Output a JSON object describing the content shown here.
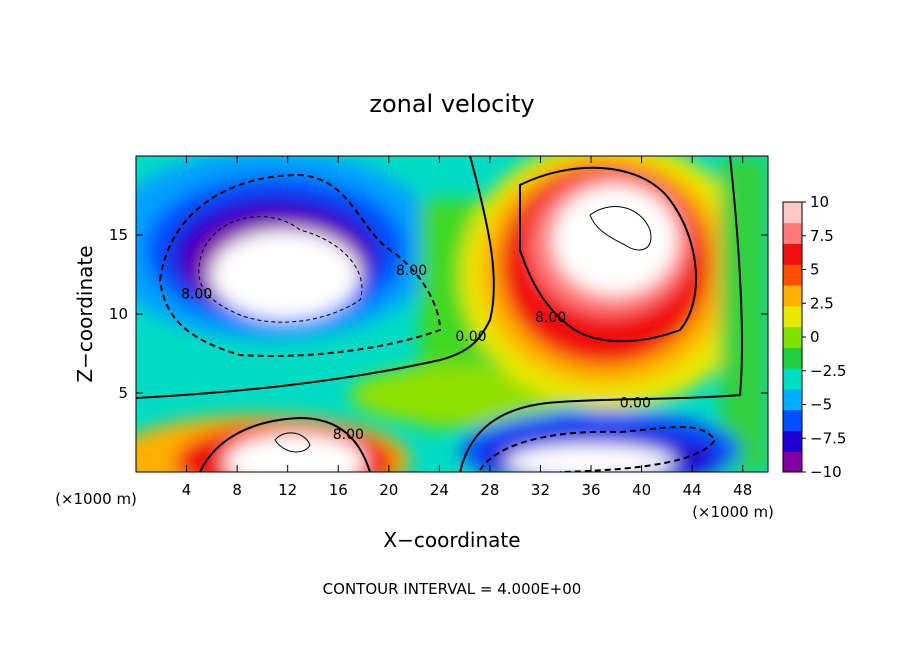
{
  "chart_data": {
    "type": "heatmap",
    "title": "zonal velocity",
    "xlabel": "X−coordinate",
    "ylabel": "Z−coordinate",
    "x_unit_label": "(×1000 m)",
    "y_unit_label": "(×1000 m)",
    "xlim": [
      0,
      50
    ],
    "ylim": [
      0,
      20
    ],
    "x_ticks": [
      4,
      8,
      12,
      16,
      20,
      24,
      28,
      32,
      36,
      40,
      44,
      48
    ],
    "y_ticks": [
      5,
      10,
      15
    ],
    "colorbar": {
      "min": -10,
      "max": 10,
      "ticks": [
        10,
        7.5,
        5,
        2.5,
        0,
        -2.5,
        -5,
        -7.5,
        -10
      ],
      "tick_labels": [
        "10",
        "7.5",
        "5",
        "2.5",
        "0",
        "−2.5",
        "−5",
        "−7.5",
        "−10"
      ],
      "colors": [
        "#8000a0",
        "#2000d0",
        "#0050ff",
        "#00b0ff",
        "#00e0c0",
        "#20d040",
        "#80e000",
        "#e8e800",
        "#ffb000",
        "#ff5000",
        "#f01010",
        "#ff7a7a",
        "#ffc8c8"
      ]
    },
    "contour_labels": [
      {
        "text": "8.00",
        "x": 4.8,
        "z": 11.3
      },
      {
        "text": "8.00",
        "x": 21.8,
        "z": 12.8
      },
      {
        "text": "0.00",
        "x": 26.5,
        "z": 8.6
      },
      {
        "text": "8.00",
        "x": 32.8,
        "z": 9.8
      },
      {
        "text": "0.00",
        "x": 39.5,
        "z": 4.4
      },
      {
        "text": "8.00",
        "x": 16.8,
        "z": 2.4
      }
    ],
    "footer": "CONTOUR INTERVAL = 4.000E+00"
  }
}
